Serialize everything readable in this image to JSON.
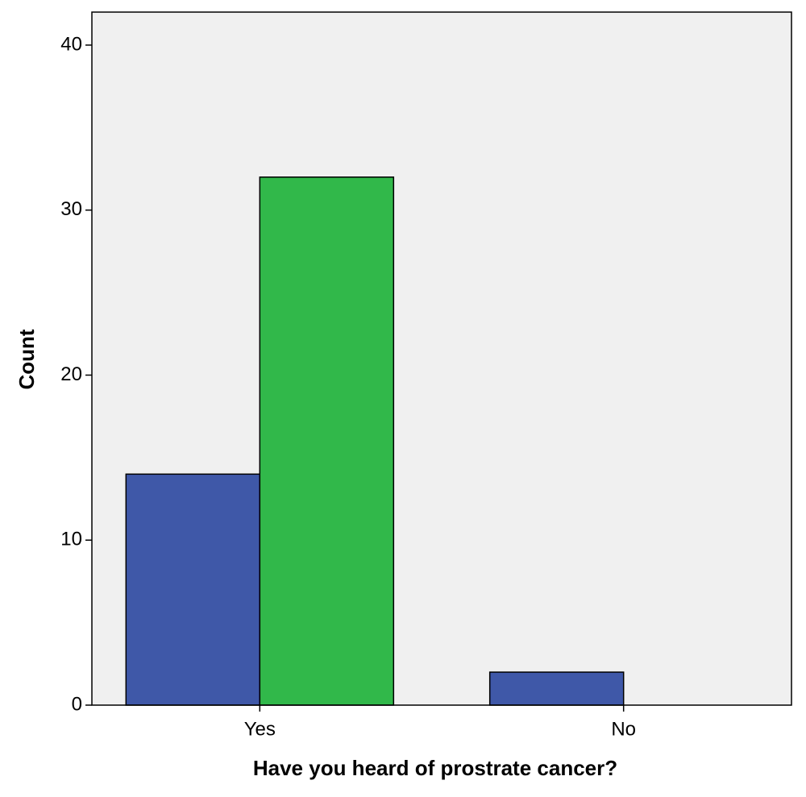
{
  "chart_data": {
    "type": "bar",
    "x_label": "Have you heard of prostrate cancer?",
    "y_label": "Count",
    "categories": [
      "Yes",
      "No"
    ],
    "series": [
      {
        "color": "#3f58a8",
        "values": [
          14,
          2
        ]
      },
      {
        "color": "#31b84a",
        "values": [
          32,
          0
        ]
      }
    ],
    "ylim": [
      0,
      42
    ],
    "yticks": [
      0,
      10,
      20,
      30,
      40
    ],
    "grid": false
  }
}
